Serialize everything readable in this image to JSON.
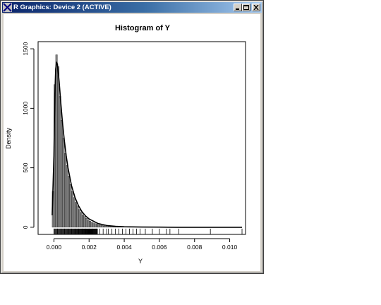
{
  "window": {
    "title": "R Graphics: Device 2 (ACTIVE)",
    "controls": [
      "minimize-icon",
      "maximize-icon",
      "close-icon"
    ],
    "colors": {
      "titlebar": "#0a246a",
      "frame": "#d4d0c8"
    }
  },
  "chart_data": {
    "type": "histogram",
    "title": "Histogram of Y",
    "xlabel": "Y",
    "ylabel": "Density",
    "xlim": [
      -0.0009,
      0.0109
    ],
    "ylim": [
      -60,
      1560
    ],
    "x_ticks": [
      0.0,
      0.002,
      0.004,
      0.006,
      0.008,
      0.01
    ],
    "x_tick_labels": [
      "0.000",
      "0.002",
      "0.004",
      "0.006",
      "0.008",
      "0.010"
    ],
    "y_ticks": [
      0,
      500,
      1000,
      1500
    ],
    "y_tick_labels": [
      "0",
      "500",
      "1000",
      "1500"
    ],
    "bin_width": 0.0001,
    "bins_start": -0.0001,
    "densities": [
      300,
      1200,
      1450,
      1350,
      1100,
      900,
      750,
      620,
      520,
      430,
      360,
      300,
      250,
      210,
      180,
      150,
      125,
      105,
      90,
      75,
      62,
      52,
      44,
      37,
      31,
      26,
      22,
      18,
      15,
      12,
      10,
      8,
      7,
      6,
      5,
      4,
      4,
      3,
      3,
      2,
      2,
      2,
      1,
      1,
      1
    ],
    "density_curve": {
      "x": [
        -0.0001,
        0.0,
        5e-05,
        0.0001,
        0.00015,
        0.0002,
        0.0003,
        0.0004,
        0.0005,
        0.0006,
        0.0007,
        0.0008,
        0.001,
        0.0012,
        0.0014,
        0.0016,
        0.0018,
        0.002,
        0.0025,
        0.003,
        0.0035,
        0.004,
        0.005,
        0.006,
        0.007,
        0.008,
        0.009,
        0.0107
      ],
      "y": [
        100,
        600,
        1100,
        1330,
        1390,
        1370,
        1220,
        1030,
        860,
        720,
        600,
        500,
        350,
        250,
        180,
        130,
        95,
        70,
        32,
        15,
        8,
        4,
        2,
        1,
        0,
        0,
        0,
        0
      ]
    },
    "rug": [
      0.0,
      0.0002,
      0.0004,
      0.0006,
      0.0008,
      0.001,
      0.0012,
      0.0014,
      0.0016,
      0.0018,
      0.002,
      0.0022,
      0.0024,
      0.0026,
      0.0028,
      0.003,
      0.0031,
      0.0033,
      0.0035,
      0.0037,
      0.0039,
      0.0041,
      0.0043,
      0.0045,
      0.0047,
      0.0049,
      0.0052,
      0.0056,
      0.006,
      0.0064,
      0.0066,
      0.0071,
      0.0089,
      0.0107
    ],
    "grid": false,
    "colors": {
      "bars": "#808080",
      "bar_border": "#000000",
      "curve": "#000000"
    }
  }
}
